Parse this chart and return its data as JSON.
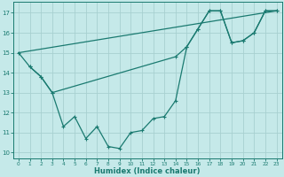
{
  "xlabel": "Humidex (Indice chaleur)",
  "bg_color": "#c5e9e9",
  "grid_color": "#a8d0d0",
  "line_color": "#1a7a70",
  "xlim": [
    -0.5,
    23.5
  ],
  "ylim": [
    9.7,
    17.55
  ],
  "yticks": [
    10,
    11,
    12,
    13,
    14,
    15,
    16,
    17
  ],
  "xticks": [
    0,
    1,
    2,
    3,
    4,
    5,
    6,
    7,
    8,
    9,
    10,
    11,
    12,
    13,
    14,
    15,
    16,
    17,
    18,
    19,
    20,
    21,
    22,
    23
  ],
  "line1_x": [
    0,
    23
  ],
  "line1_y": [
    15.0,
    17.1
  ],
  "line2_x": [
    0,
    1,
    2,
    3,
    14,
    15,
    16,
    17,
    18,
    19,
    20,
    21,
    22,
    23
  ],
  "line2_y": [
    15.0,
    14.3,
    13.8,
    13.0,
    14.8,
    15.3,
    16.2,
    17.1,
    17.1,
    15.5,
    15.6,
    16.0,
    17.1,
    17.1
  ],
  "line3_x": [
    1,
    2,
    3,
    4,
    5,
    6,
    7,
    8,
    9,
    10,
    11,
    12,
    13,
    14,
    15,
    16,
    17,
    18,
    19,
    20,
    21,
    22,
    23
  ],
  "line3_y": [
    14.3,
    13.8,
    13.0,
    11.3,
    11.8,
    10.7,
    11.3,
    10.3,
    10.2,
    11.0,
    11.1,
    11.7,
    11.8,
    12.6,
    15.3,
    16.2,
    17.1,
    17.1,
    15.5,
    15.6,
    16.0,
    17.1,
    17.1
  ]
}
